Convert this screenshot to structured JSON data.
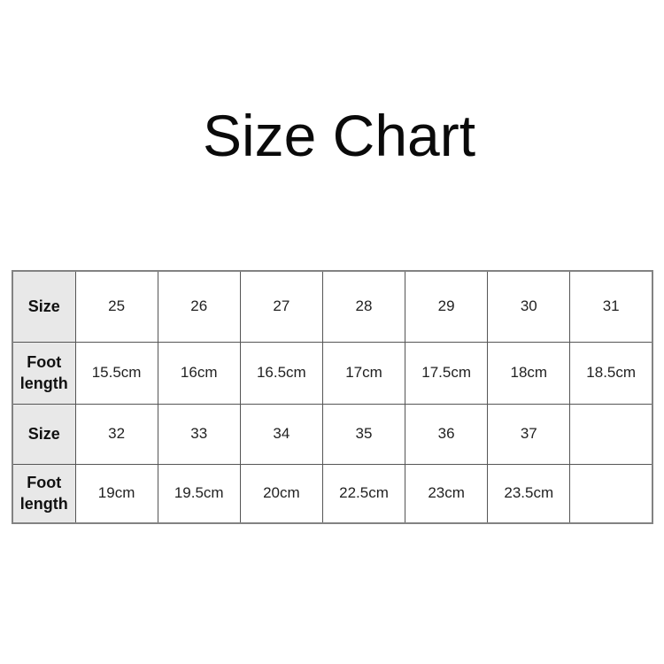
{
  "page": {
    "title": "Size Chart"
  },
  "chart_data": {
    "type": "table",
    "title": "Size Chart",
    "columns_per_row": 7,
    "rows": [
      {
        "header": "Size",
        "cells": [
          "25",
          "26",
          "27",
          "28",
          "29",
          "30",
          "31"
        ]
      },
      {
        "header": "Foot length",
        "cells": [
          "15.5cm",
          "16cm",
          "16.5cm",
          "17cm",
          "17.5cm",
          "18cm",
          "18.5cm"
        ]
      },
      {
        "header": "Size",
        "cells": [
          "32",
          "33",
          "34",
          "35",
          "36",
          "37",
          ""
        ]
      },
      {
        "header": "Foot length",
        "cells": [
          "19cm",
          "19.5cm",
          "20cm",
          "22.5cm",
          "23cm",
          "23.5cm",
          ""
        ]
      }
    ],
    "colors": {
      "header_cell_background": "#e8e8e8",
      "grid_line": "#555555",
      "outer_border": "#828282",
      "text": "#222222",
      "title_text": "#0a0a0a",
      "page_background": "#ffffff"
    }
  }
}
